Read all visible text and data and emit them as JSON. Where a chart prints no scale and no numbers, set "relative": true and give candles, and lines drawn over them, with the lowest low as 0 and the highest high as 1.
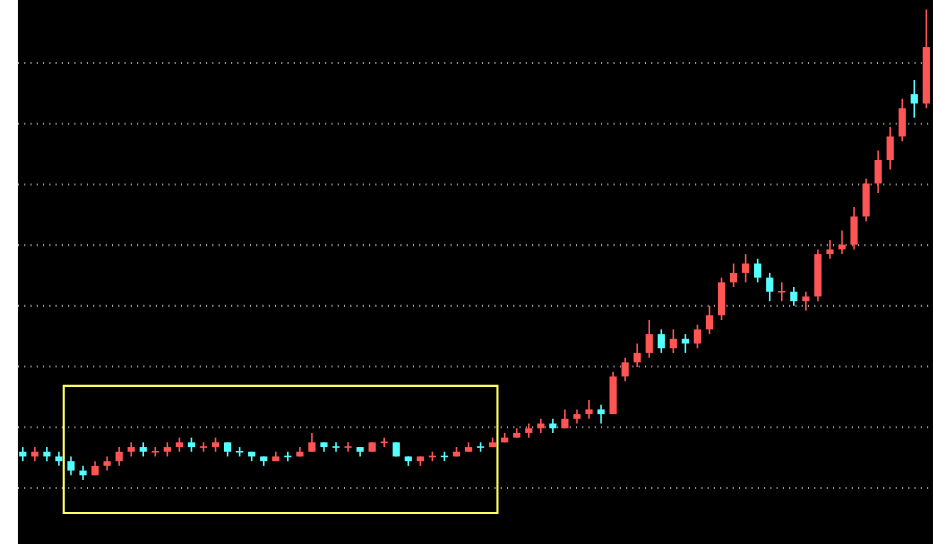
{
  "chart_data": {
    "type": "candlestick",
    "relative": true,
    "grid": "y",
    "categories": [
      null,
      null,
      null,
      null,
      null,
      null,
      null,
      null,
      null,
      null,
      null,
      null,
      null,
      null,
      null,
      null,
      null,
      null,
      null,
      null,
      null,
      null,
      null,
      null,
      null,
      null,
      null,
      null,
      null,
      null,
      null,
      null,
      null,
      null,
      null,
      null,
      null,
      null,
      null,
      null,
      null,
      null,
      null,
      null,
      null,
      null,
      null,
      null,
      null,
      null,
      null,
      null,
      null,
      null,
      null,
      null,
      null,
      null,
      null,
      null,
      null,
      null,
      null,
      null,
      null,
      null,
      null,
      null,
      null,
      null,
      null,
      null,
      null,
      null,
      null,
      null
    ],
    "ohlc": [
      [
        0.06,
        0.07,
        0.04,
        0.05
      ],
      [
        0.05,
        0.07,
        0.04,
        0.06
      ],
      [
        0.06,
        0.07,
        0.04,
        0.05
      ],
      [
        0.05,
        0.06,
        0.03,
        0.04
      ],
      [
        0.04,
        0.05,
        0.01,
        0.02
      ],
      [
        0.02,
        0.03,
        0.0,
        0.01
      ],
      [
        0.01,
        0.04,
        0.01,
        0.03
      ],
      [
        0.03,
        0.05,
        0.02,
        0.04
      ],
      [
        0.04,
        0.07,
        0.03,
        0.06
      ],
      [
        0.06,
        0.08,
        0.05,
        0.07
      ],
      [
        0.07,
        0.08,
        0.05,
        0.06
      ],
      [
        0.06,
        0.07,
        0.05,
        0.06
      ],
      [
        0.06,
        0.08,
        0.05,
        0.07
      ],
      [
        0.07,
        0.09,
        0.06,
        0.08
      ],
      [
        0.08,
        0.09,
        0.06,
        0.07
      ],
      [
        0.07,
        0.08,
        0.06,
        0.07
      ],
      [
        0.07,
        0.09,
        0.06,
        0.08
      ],
      [
        0.08,
        0.08,
        0.05,
        0.06
      ],
      [
        0.06,
        0.07,
        0.05,
        0.06
      ],
      [
        0.06,
        0.06,
        0.04,
        0.05
      ],
      [
        0.05,
        0.05,
        0.03,
        0.04
      ],
      [
        0.04,
        0.06,
        0.04,
        0.05
      ],
      [
        0.05,
        0.06,
        0.04,
        0.05
      ],
      [
        0.05,
        0.07,
        0.05,
        0.06
      ],
      [
        0.06,
        0.1,
        0.06,
        0.08
      ],
      [
        0.08,
        0.08,
        0.06,
        0.07
      ],
      [
        0.07,
        0.08,
        0.06,
        0.07
      ],
      [
        0.07,
        0.08,
        0.06,
        0.07
      ],
      [
        0.07,
        0.07,
        0.05,
        0.06
      ],
      [
        0.06,
        0.08,
        0.06,
        0.08
      ],
      [
        0.08,
        0.09,
        0.07,
        0.08
      ],
      [
        0.08,
        0.08,
        0.05,
        0.05
      ],
      [
        0.05,
        0.05,
        0.03,
        0.04
      ],
      [
        0.04,
        0.05,
        0.03,
        0.05
      ],
      [
        0.05,
        0.06,
        0.04,
        0.05
      ],
      [
        0.05,
        0.06,
        0.04,
        0.05
      ],
      [
        0.05,
        0.07,
        0.05,
        0.06
      ],
      [
        0.06,
        0.08,
        0.06,
        0.07
      ],
      [
        0.07,
        0.08,
        0.06,
        0.07
      ],
      [
        0.07,
        0.09,
        0.07,
        0.08
      ],
      [
        0.08,
        0.1,
        0.08,
        0.09
      ],
      [
        0.09,
        0.11,
        0.09,
        0.1
      ],
      [
        0.1,
        0.12,
        0.09,
        0.11
      ],
      [
        0.11,
        0.13,
        0.1,
        0.12
      ],
      [
        0.12,
        0.13,
        0.1,
        0.11
      ],
      [
        0.11,
        0.15,
        0.11,
        0.13
      ],
      [
        0.13,
        0.15,
        0.12,
        0.14
      ],
      [
        0.14,
        0.17,
        0.13,
        0.15
      ],
      [
        0.15,
        0.16,
        0.12,
        0.14
      ],
      [
        0.14,
        0.23,
        0.14,
        0.22
      ],
      [
        0.22,
        0.26,
        0.21,
        0.25
      ],
      [
        0.25,
        0.29,
        0.24,
        0.27
      ],
      [
        0.27,
        0.34,
        0.26,
        0.31
      ],
      [
        0.31,
        0.32,
        0.27,
        0.28
      ],
      [
        0.28,
        0.32,
        0.27,
        0.3
      ],
      [
        0.3,
        0.31,
        0.27,
        0.29
      ],
      [
        0.29,
        0.33,
        0.28,
        0.32
      ],
      [
        0.32,
        0.37,
        0.31,
        0.35
      ],
      [
        0.35,
        0.43,
        0.34,
        0.42
      ],
      [
        0.42,
        0.46,
        0.41,
        0.44
      ],
      [
        0.44,
        0.48,
        0.42,
        0.46
      ],
      [
        0.46,
        0.47,
        0.42,
        0.43
      ],
      [
        0.43,
        0.44,
        0.38,
        0.4
      ],
      [
        0.4,
        0.42,
        0.38,
        0.4
      ],
      [
        0.4,
        0.41,
        0.37,
        0.38
      ],
      [
        0.38,
        0.4,
        0.36,
        0.39
      ],
      [
        0.39,
        0.49,
        0.38,
        0.48
      ],
      [
        0.48,
        0.51,
        0.47,
        0.49
      ],
      [
        0.49,
        0.53,
        0.48,
        0.5
      ],
      [
        0.5,
        0.58,
        0.49,
        0.56
      ],
      [
        0.56,
        0.64,
        0.55,
        0.63
      ],
      [
        0.63,
        0.7,
        0.61,
        0.68
      ],
      [
        0.68,
        0.75,
        0.66,
        0.73
      ],
      [
        0.73,
        0.81,
        0.72,
        0.79
      ],
      [
        0.82,
        0.85,
        0.77,
        0.8
      ],
      [
        0.8,
        1.0,
        0.79,
        0.92
      ]
    ],
    "colors": [
      "#55ffff",
      "#ff5555",
      "#55ffff",
      "#55ffff",
      "#55ffff",
      "#55ffff",
      "#ff5555",
      "#ff5555",
      "#ff5555",
      "#ff5555",
      "#55ffff",
      "#ff5555",
      "#ff5555",
      "#ff5555",
      "#55ffff",
      "#ff5555",
      "#ff5555",
      "#55ffff",
      "#55ffff",
      "#55ffff",
      "#55ffff",
      "#ff5555",
      "#55ffff",
      "#ff5555",
      "#ff5555",
      "#55ffff",
      "#55ffff",
      "#ff5555",
      "#55ffff",
      "#ff5555",
      "#ff5555",
      "#55ffff",
      "#55ffff",
      "#ff5555",
      "#ff5555",
      "#55ffff",
      "#ff5555",
      "#ff5555",
      "#55ffff",
      "#ff5555",
      "#ff5555",
      "#ff5555",
      "#ff5555",
      "#ff5555",
      "#55ffff",
      "#ff5555",
      "#ff5555",
      "#ff5555",
      "#55ffff",
      "#ff5555",
      "#ff5555",
      "#ff5555",
      "#ff5555",
      "#55ffff",
      "#ff5555",
      "#55ffff",
      "#ff5555",
      "#ff5555",
      "#ff5555",
      "#ff5555",
      "#ff5555",
      "#55ffff",
      "#55ffff",
      "#ff5555",
      "#55ffff",
      "#ff5555",
      "#ff5555",
      "#ff5555",
      "#ff5555",
      "#ff5555",
      "#ff5555",
      "#ff5555",
      "#ff5555",
      "#ff5555",
      "#55ffff",
      "#ff5555"
    ]
  }
}
